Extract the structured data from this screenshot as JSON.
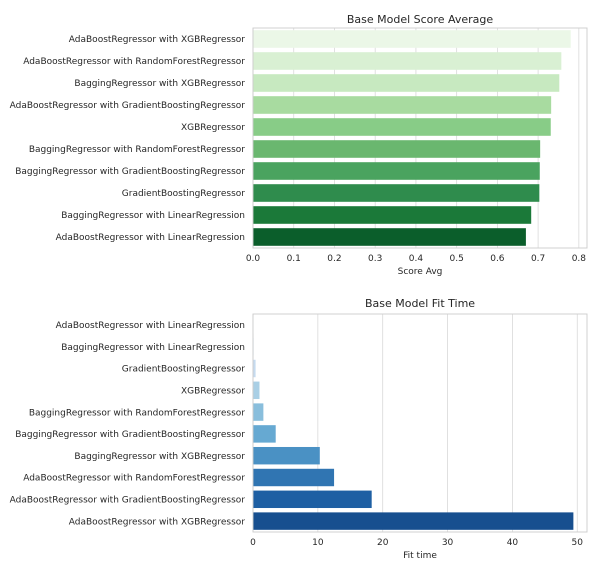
{
  "chart_data": [
    {
      "type": "bar",
      "orientation": "horizontal",
      "title": "Base Model Score Average",
      "xlabel": "Score Avg",
      "ylabel": "",
      "xlim": [
        0,
        0.82
      ],
      "xticks": [
        0.0,
        0.1,
        0.2,
        0.3,
        0.4,
        0.5,
        0.6,
        0.7,
        0.8
      ],
      "tick_labels": [
        "0.0",
        "0.1",
        "0.2",
        "0.3",
        "0.4",
        "0.5",
        "0.6",
        "0.7",
        "0.8"
      ],
      "grid": "vertical",
      "categories": [
        "AdaBoostRegressor with XGBRegressor",
        "AdaBoostRegressor with RandomForestRegressor",
        "BaggingRegressor with XGBRegressor",
        "AdaBoostRegressor with GradientBoostingRegressor",
        "XGBRegressor",
        "BaggingRegressor with RandomForestRegressor",
        "BaggingRegressor with GradientBoostingRegressor",
        "GradientBoostingRegressor",
        "BaggingRegressor with LinearRegression",
        "AdaBoostRegressor with LinearRegression"
      ],
      "values": [
        0.78,
        0.757,
        0.752,
        0.732,
        0.731,
        0.705,
        0.704,
        0.703,
        0.683,
        0.67
      ],
      "colors": [
        "#ebf7e7",
        "#d9f0d3",
        "#c7e9c0",
        "#a8dba0",
        "#88cc87",
        "#6ab76f",
        "#4aa35f",
        "#2f8c4d",
        "#1b7939",
        "#0b5e2b"
      ]
    },
    {
      "type": "bar",
      "orientation": "horizontal",
      "title": "Base Model Fit Time",
      "xlabel": "Fit time",
      "ylabel": "",
      "xlim": [
        0,
        51.5
      ],
      "xticks": [
        0,
        10,
        20,
        30,
        40,
        50
      ],
      "tick_labels": [
        "0",
        "10",
        "20",
        "30",
        "40",
        "50"
      ],
      "grid": "vertical",
      "categories": [
        "AdaBoostRegressor with LinearRegression",
        "BaggingRegressor with LinearRegression",
        "GradientBoostingRegressor",
        "XGBRegressor",
        "BaggingRegressor with RandomForestRegressor",
        "BaggingRegressor with GradientBoostingRegressor",
        "BaggingRegressor with XGBRegressor",
        "AdaBoostRegressor with RandomForestRegressor",
        "AdaBoostRegressor with GradientBoostingRegressor",
        "AdaBoostRegressor with XGBRegressor"
      ],
      "values": [
        0.05,
        0.1,
        0.4,
        1.0,
        1.6,
        3.5,
        10.3,
        12.5,
        18.3,
        49.4
      ],
      "colors": [
        "#eef4fb",
        "#dae8f5",
        "#c6dbef",
        "#a9cfe5",
        "#89bedc",
        "#66a9d2",
        "#4a91c4",
        "#3075b2",
        "#1e5fa3",
        "#174f8f"
      ]
    }
  ]
}
